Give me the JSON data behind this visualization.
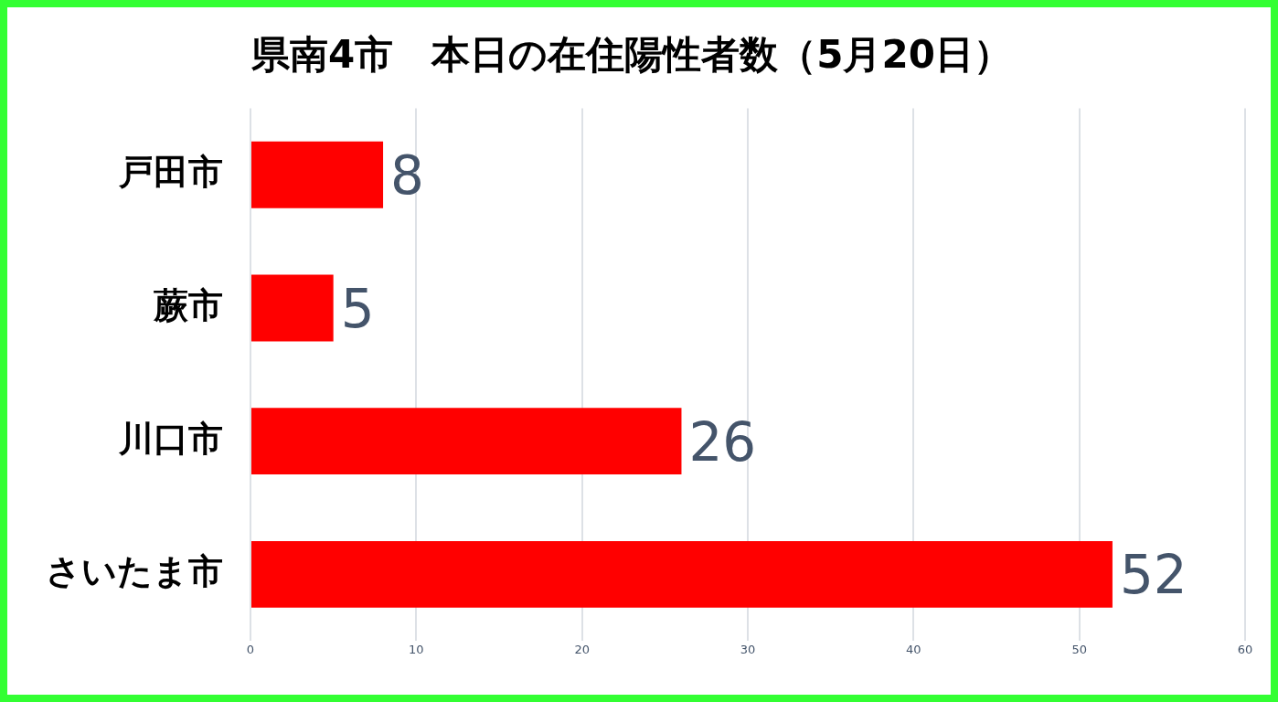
{
  "chart_data": {
    "type": "bar",
    "orientation": "horizontal",
    "title": "県南4市　本日の在住陽性者数（5月20日）",
    "categories": [
      "戸田市",
      "蕨市",
      "川口市",
      "さいたま市"
    ],
    "values": [
      8,
      5,
      26,
      52
    ],
    "color": "#ff0000",
    "xlim": [
      0,
      60
    ],
    "xticks": [
      0,
      10,
      20,
      30,
      40,
      50,
      60
    ],
    "grid": "x",
    "data_labels": true,
    "legend": false
  }
}
